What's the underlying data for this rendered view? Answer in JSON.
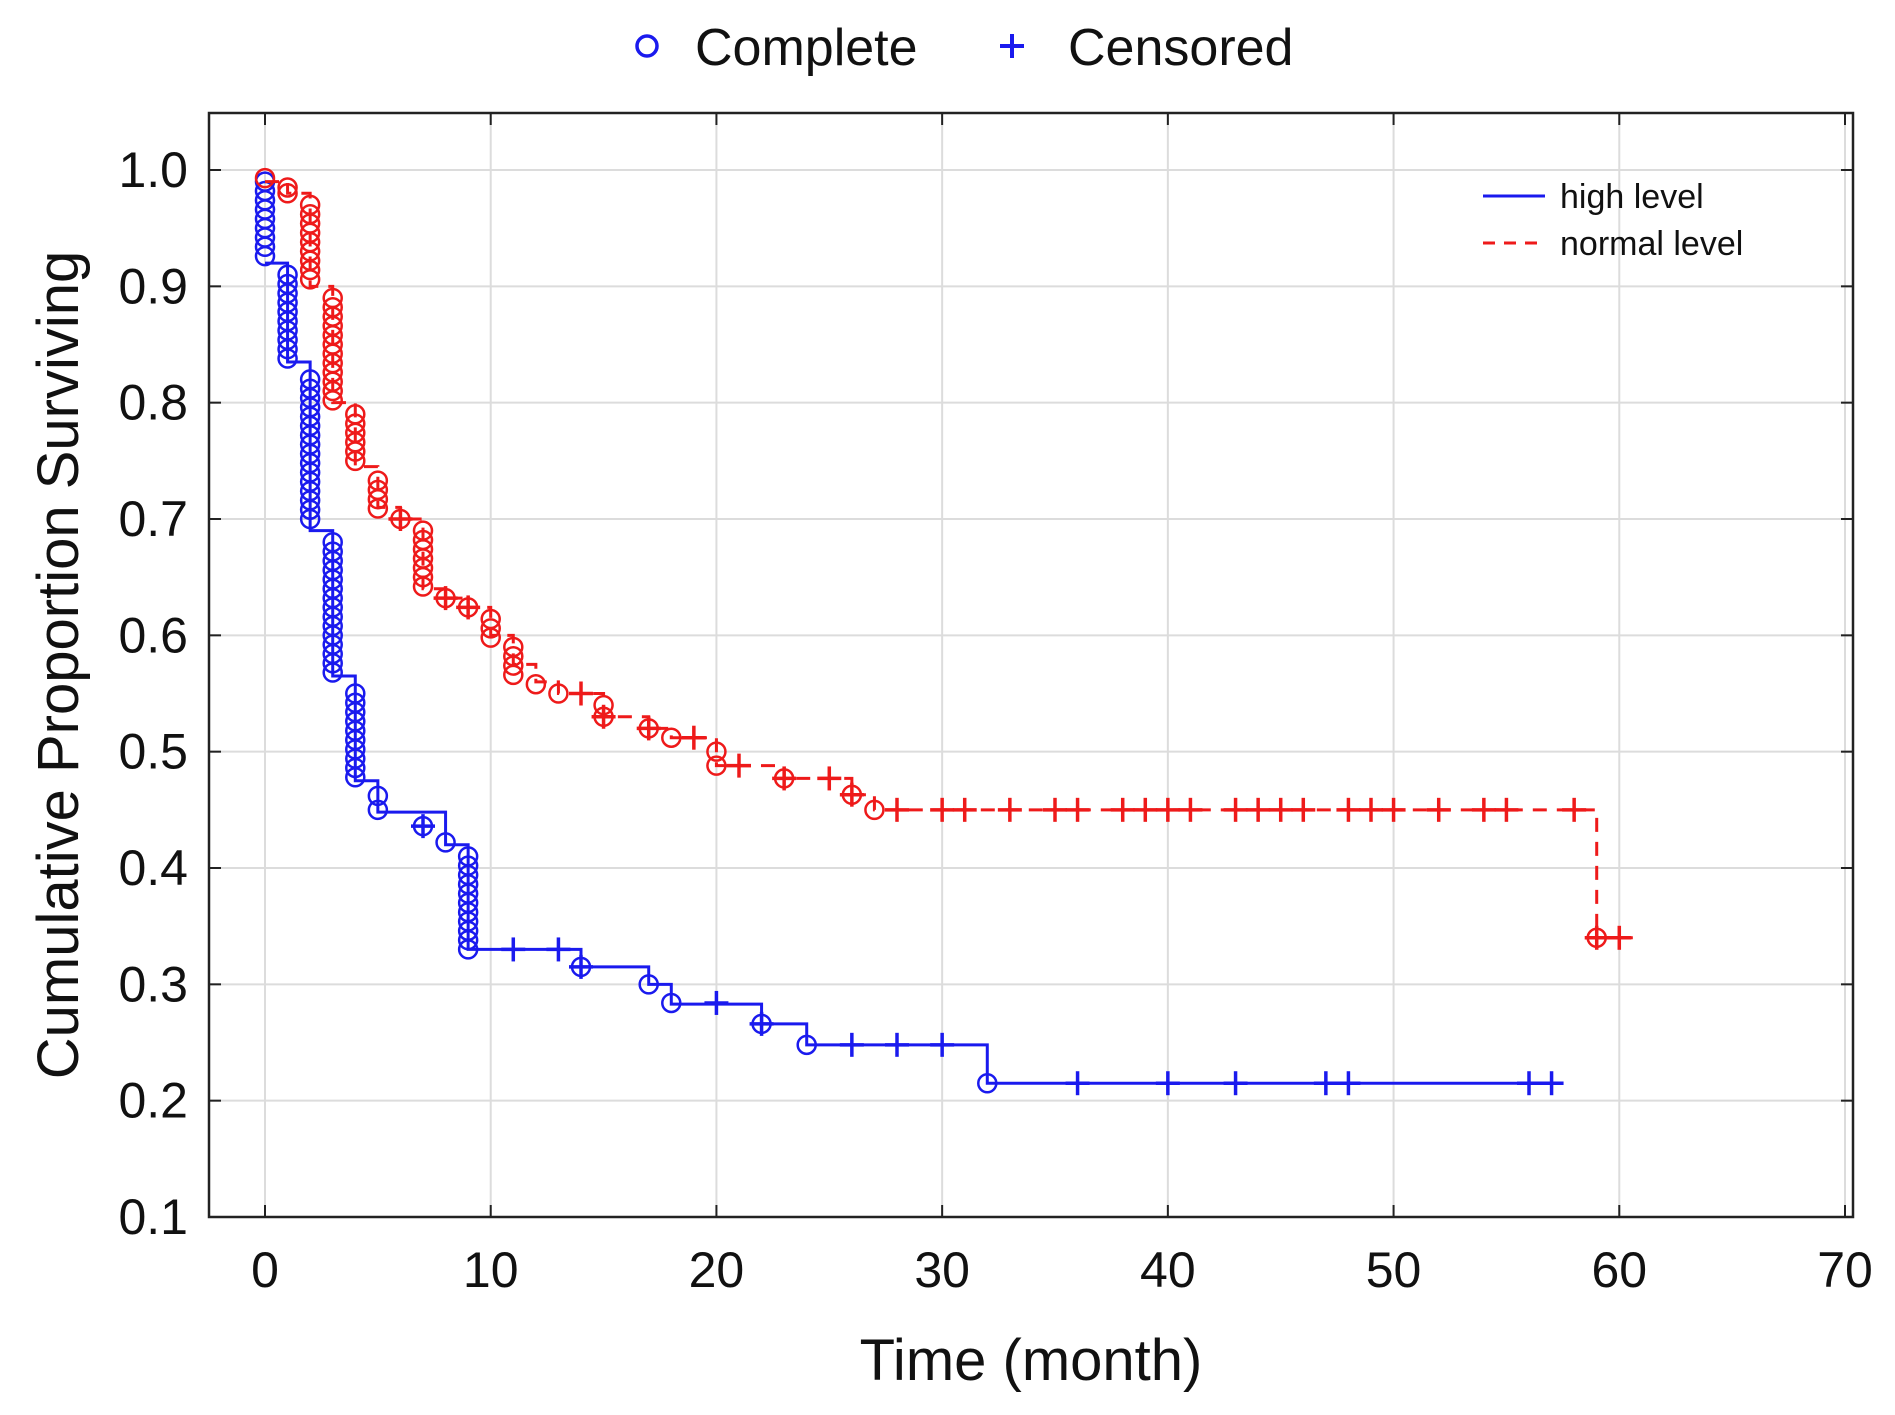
{
  "chart_data": {
    "type": "line",
    "subtype": "kaplan-meier step",
    "xlabel": "Time (month)",
    "ylabel": "Cumulative Proportion Surviving",
    "xlim": [
      0,
      70
    ],
    "ylim": [
      0.1,
      1.0
    ],
    "x_ticks": [
      0,
      10,
      20,
      30,
      40,
      50,
      60,
      70
    ],
    "x_tick_labels": [
      "0",
      "10",
      "20",
      "30",
      "40",
      "50",
      "60",
      "70"
    ],
    "y_ticks": [
      0.1,
      0.2,
      0.3,
      0.4,
      0.5,
      0.6,
      0.7,
      0.8,
      0.9,
      1.0
    ],
    "y_tick_labels": [
      "0.1",
      "0.2",
      "0.3",
      "0.4",
      "0.5",
      "0.6",
      "0.7",
      "0.8",
      "0.9",
      "1.0"
    ],
    "grid": true,
    "marker_legend": {
      "placement": "top-center",
      "complete_symbol": "○",
      "complete_label": "Complete",
      "censored_symbol": "+",
      "censored_label": "Censored",
      "color": "#1a1aee"
    },
    "series_legend_placement": "top-right",
    "series": [
      {
        "name": "high level",
        "color": "#1a1aee",
        "dash": "solid",
        "end_x": 57.3,
        "steps": [
          [
            0,
            0.92
          ],
          [
            1,
            0.835
          ],
          [
            2,
            0.69
          ],
          [
            3,
            0.565
          ],
          [
            4,
            0.475
          ],
          [
            5,
            0.448
          ],
          [
            8,
            0.42
          ],
          [
            9,
            0.33
          ],
          [
            14,
            0.315
          ],
          [
            17,
            0.3
          ],
          [
            18,
            0.283
          ],
          [
            22,
            0.266
          ],
          [
            24,
            0.248
          ],
          [
            32,
            0.215
          ]
        ],
        "complete": [
          [
            0,
            0.99
          ],
          [
            0,
            0.982
          ],
          [
            0,
            0.974
          ],
          [
            0,
            0.966
          ],
          [
            0,
            0.958
          ],
          [
            0,
            0.95
          ],
          [
            0,
            0.942
          ],
          [
            0,
            0.934
          ],
          [
            0,
            0.926
          ],
          [
            1,
            0.91
          ],
          [
            1,
            0.902
          ],
          [
            1,
            0.894
          ],
          [
            1,
            0.886
          ],
          [
            1,
            0.878
          ],
          [
            1,
            0.87
          ],
          [
            1,
            0.862
          ],
          [
            1,
            0.854
          ],
          [
            1,
            0.846
          ],
          [
            1,
            0.838
          ],
          [
            2,
            0.82
          ],
          [
            2,
            0.812
          ],
          [
            2,
            0.804
          ],
          [
            2,
            0.796
          ],
          [
            2,
            0.788
          ],
          [
            2,
            0.78
          ],
          [
            2,
            0.772
          ],
          [
            2,
            0.764
          ],
          [
            2,
            0.756
          ],
          [
            2,
            0.748
          ],
          [
            2,
            0.74
          ],
          [
            2,
            0.732
          ],
          [
            2,
            0.724
          ],
          [
            2,
            0.716
          ],
          [
            2,
            0.708
          ],
          [
            2,
            0.7
          ],
          [
            3,
            0.68
          ],
          [
            3,
            0.672
          ],
          [
            3,
            0.664
          ],
          [
            3,
            0.656
          ],
          [
            3,
            0.648
          ],
          [
            3,
            0.64
          ],
          [
            3,
            0.632
          ],
          [
            3,
            0.624
          ],
          [
            3,
            0.616
          ],
          [
            3,
            0.608
          ],
          [
            3,
            0.6
          ],
          [
            3,
            0.592
          ],
          [
            3,
            0.584
          ],
          [
            3,
            0.576
          ],
          [
            3,
            0.568
          ],
          [
            4,
            0.55
          ],
          [
            4,
            0.542
          ],
          [
            4,
            0.534
          ],
          [
            4,
            0.526
          ],
          [
            4,
            0.518
          ],
          [
            4,
            0.51
          ],
          [
            4,
            0.502
          ],
          [
            4,
            0.494
          ],
          [
            4,
            0.486
          ],
          [
            4,
            0.478
          ],
          [
            5,
            0.462
          ],
          [
            5,
            0.45
          ],
          [
            7,
            0.436
          ],
          [
            8,
            0.422
          ],
          [
            9,
            0.41
          ],
          [
            9,
            0.402
          ],
          [
            9,
            0.394
          ],
          [
            9,
            0.386
          ],
          [
            9,
            0.378
          ],
          [
            9,
            0.37
          ],
          [
            9,
            0.362
          ],
          [
            9,
            0.354
          ],
          [
            9,
            0.346
          ],
          [
            9,
            0.338
          ],
          [
            9,
            0.33
          ],
          [
            14,
            0.315
          ],
          [
            17,
            0.3
          ],
          [
            18,
            0.284
          ],
          [
            22,
            0.266
          ],
          [
            24,
            0.248
          ],
          [
            32,
            0.215
          ]
        ],
        "censored": [
          [
            7,
            0.436
          ],
          [
            11,
            0.33
          ],
          [
            13,
            0.33
          ],
          [
            14,
            0.315
          ],
          [
            20,
            0.284
          ],
          [
            22,
            0.266
          ],
          [
            26,
            0.248
          ],
          [
            28,
            0.248
          ],
          [
            30,
            0.248
          ],
          [
            36,
            0.215
          ],
          [
            40,
            0.215
          ],
          [
            43,
            0.215
          ],
          [
            47,
            0.215
          ],
          [
            48,
            0.215
          ],
          [
            56,
            0.215
          ],
          [
            57,
            0.215
          ]
        ]
      },
      {
        "name": "normal level",
        "color": "#ee1a1a",
        "dash": "dashed",
        "end_x": 60.6,
        "steps": [
          [
            0,
            0.99
          ],
          [
            1,
            0.98
          ],
          [
            2,
            0.9
          ],
          [
            3,
            0.8
          ],
          [
            4,
            0.745
          ],
          [
            5,
            0.71
          ],
          [
            6,
            0.7
          ],
          [
            7,
            0.64
          ],
          [
            8,
            0.632
          ],
          [
            9,
            0.624
          ],
          [
            10,
            0.6
          ],
          [
            11,
            0.575
          ],
          [
            12,
            0.56
          ],
          [
            13,
            0.55
          ],
          [
            15,
            0.53
          ],
          [
            17,
            0.52
          ],
          [
            18,
            0.512
          ],
          [
            20,
            0.488
          ],
          [
            23,
            0.477
          ],
          [
            26,
            0.463
          ],
          [
            27,
            0.45
          ],
          [
            59,
            0.34
          ]
        ],
        "complete": [
          [
            0,
            0.993
          ],
          [
            1,
            0.985
          ],
          [
            1,
            0.98
          ],
          [
            2,
            0.97
          ],
          [
            2,
            0.962
          ],
          [
            2,
            0.954
          ],
          [
            2,
            0.946
          ],
          [
            2,
            0.938
          ],
          [
            2,
            0.93
          ],
          [
            2,
            0.922
          ],
          [
            2,
            0.914
          ],
          [
            2,
            0.906
          ],
          [
            3,
            0.89
          ],
          [
            3,
            0.882
          ],
          [
            3,
            0.874
          ],
          [
            3,
            0.866
          ],
          [
            3,
            0.858
          ],
          [
            3,
            0.85
          ],
          [
            3,
            0.842
          ],
          [
            3,
            0.834
          ],
          [
            3,
            0.826
          ],
          [
            3,
            0.818
          ],
          [
            3,
            0.81
          ],
          [
            3,
            0.802
          ],
          [
            4,
            0.79
          ],
          [
            4,
            0.782
          ],
          [
            4,
            0.774
          ],
          [
            4,
            0.766
          ],
          [
            4,
            0.758
          ],
          [
            4,
            0.75
          ],
          [
            5,
            0.733
          ],
          [
            5,
            0.725
          ],
          [
            5,
            0.717
          ],
          [
            5,
            0.709
          ],
          [
            6,
            0.7
          ],
          [
            7,
            0.69
          ],
          [
            7,
            0.682
          ],
          [
            7,
            0.674
          ],
          [
            7,
            0.666
          ],
          [
            7,
            0.658
          ],
          [
            7,
            0.65
          ],
          [
            7,
            0.642
          ],
          [
            8,
            0.632
          ],
          [
            9,
            0.624
          ],
          [
            10,
            0.614
          ],
          [
            10,
            0.606
          ],
          [
            10,
            0.598
          ],
          [
            11,
            0.59
          ],
          [
            11,
            0.582
          ],
          [
            11,
            0.574
          ],
          [
            11,
            0.566
          ],
          [
            12,
            0.558
          ],
          [
            13,
            0.55
          ],
          [
            15,
            0.54
          ],
          [
            15,
            0.53
          ],
          [
            17,
            0.52
          ],
          [
            18,
            0.512
          ],
          [
            20,
            0.5
          ],
          [
            20,
            0.488
          ],
          [
            23,
            0.477
          ],
          [
            26,
            0.463
          ],
          [
            27,
            0.45
          ],
          [
            59,
            0.34
          ]
        ],
        "censored": [
          [
            6,
            0.7
          ],
          [
            8,
            0.632
          ],
          [
            9,
            0.624
          ],
          [
            14,
            0.55
          ],
          [
            15,
            0.53
          ],
          [
            17,
            0.52
          ],
          [
            19,
            0.512
          ],
          [
            21,
            0.488
          ],
          [
            23,
            0.477
          ],
          [
            25,
            0.477
          ],
          [
            26,
            0.463
          ],
          [
            28,
            0.45
          ],
          [
            30,
            0.45
          ],
          [
            31,
            0.45
          ],
          [
            33,
            0.45
          ],
          [
            35,
            0.45
          ],
          [
            36,
            0.45
          ],
          [
            38,
            0.45
          ],
          [
            39,
            0.45
          ],
          [
            40,
            0.45
          ],
          [
            41,
            0.45
          ],
          [
            43,
            0.45
          ],
          [
            44,
            0.45
          ],
          [
            45,
            0.45
          ],
          [
            46,
            0.45
          ],
          [
            48,
            0.45
          ],
          [
            49,
            0.45
          ],
          [
            50,
            0.45
          ],
          [
            52,
            0.45
          ],
          [
            54,
            0.45
          ],
          [
            55,
            0.45
          ],
          [
            58,
            0.45
          ],
          [
            59,
            0.34
          ],
          [
            60,
            0.34
          ]
        ]
      }
    ]
  }
}
